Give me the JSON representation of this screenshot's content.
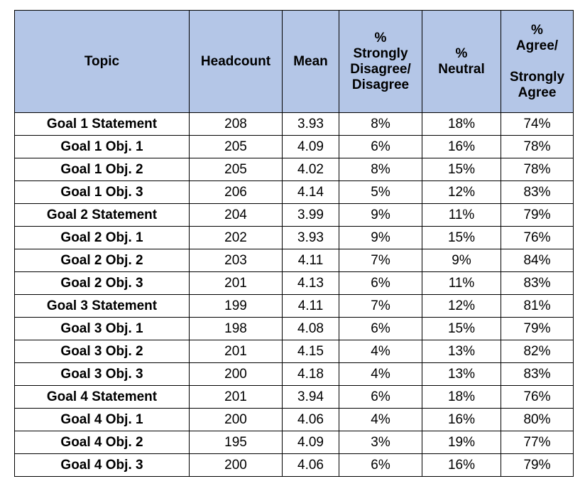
{
  "table": {
    "headers": {
      "topic": "Topic",
      "headcount": "Headcount",
      "mean": "Mean",
      "disagree": [
        "%",
        "Strongly",
        "Disagree/",
        "Disagree"
      ],
      "neutral": [
        "%",
        "Neutral"
      ],
      "agree_top": [
        "%",
        "Agree/"
      ],
      "agree_bottom": [
        "Strongly",
        "Agree"
      ]
    },
    "rows": [
      {
        "topic": "Goal 1 Statement",
        "headcount": "208",
        "mean": "3.93",
        "disagree": "8%",
        "neutral": "18%",
        "agree": "74%"
      },
      {
        "topic": "Goal 1 Obj. 1",
        "headcount": "205",
        "mean": "4.09",
        "disagree": "6%",
        "neutral": "16%",
        "agree": "78%"
      },
      {
        "topic": "Goal 1 Obj. 2",
        "headcount": "205",
        "mean": "4.02",
        "disagree": "8%",
        "neutral": "15%",
        "agree": "78%"
      },
      {
        "topic": "Goal 1 Obj. 3",
        "headcount": "206",
        "mean": "4.14",
        "disagree": "5%",
        "neutral": "12%",
        "agree": "83%"
      },
      {
        "topic": "Goal 2 Statement",
        "headcount": "204",
        "mean": "3.99",
        "disagree": "9%",
        "neutral": "11%",
        "agree": "79%"
      },
      {
        "topic": "Goal 2 Obj. 1",
        "headcount": "202",
        "mean": "3.93",
        "disagree": "9%",
        "neutral": "15%",
        "agree": "76%"
      },
      {
        "topic": "Goal 2 Obj. 2",
        "headcount": "203",
        "mean": "4.11",
        "disagree": "7%",
        "neutral": "9%",
        "agree": "84%"
      },
      {
        "topic": "Goal 2 Obj. 3",
        "headcount": "201",
        "mean": "4.13",
        "disagree": "6%",
        "neutral": "11%",
        "agree": "83%"
      },
      {
        "topic": "Goal 3 Statement",
        "headcount": "199",
        "mean": "4.11",
        "disagree": "7%",
        "neutral": "12%",
        "agree": "81%"
      },
      {
        "topic": "Goal 3 Obj. 1",
        "headcount": "198",
        "mean": "4.08",
        "disagree": "6%",
        "neutral": "15%",
        "agree": "79%"
      },
      {
        "topic": "Goal 3 Obj. 2",
        "headcount": "201",
        "mean": "4.15",
        "disagree": "4%",
        "neutral": "13%",
        "agree": "82%"
      },
      {
        "topic": "Goal 3 Obj. 3",
        "headcount": "200",
        "mean": "4.18",
        "disagree": "4%",
        "neutral": "13%",
        "agree": "83%"
      },
      {
        "topic": "Goal 4 Statement",
        "headcount": "201",
        "mean": "3.94",
        "disagree": "6%",
        "neutral": "18%",
        "agree": "76%"
      },
      {
        "topic": "Goal 4 Obj. 1",
        "headcount": "200",
        "mean": "4.06",
        "disagree": "4%",
        "neutral": "16%",
        "agree": "80%"
      },
      {
        "topic": "Goal 4 Obj. 2",
        "headcount": "195",
        "mean": "4.09",
        "disagree": "3%",
        "neutral": "19%",
        "agree": "77%"
      },
      {
        "topic": "Goal 4 Obj. 3",
        "headcount": "200",
        "mean": "4.06",
        "disagree": "6%",
        "neutral": "16%",
        "agree": "79%"
      }
    ]
  },
  "colors": {
    "header_background": "#b4c6e7",
    "border": "#000000"
  }
}
